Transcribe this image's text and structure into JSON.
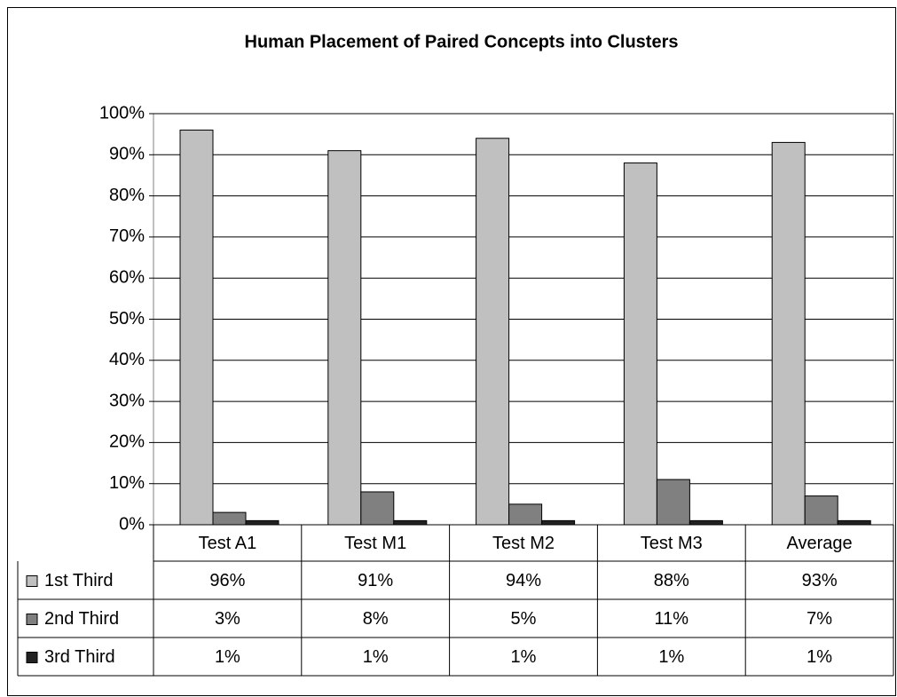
{
  "chart_data": {
    "type": "bar",
    "title": "Human Placement of Paired Concepts into Clusters",
    "categories": [
      "Test A1",
      "Test M1",
      "Test M2",
      "Test M3",
      "Average"
    ],
    "series": [
      {
        "name": "1st Third",
        "color": "#c0c0c0",
        "values": [
          96,
          91,
          94,
          88,
          93
        ],
        "value_labels": [
          "96%",
          "91%",
          "94%",
          "88%",
          "93%"
        ]
      },
      {
        "name": "2nd Third",
        "color": "#808080",
        "values": [
          3,
          8,
          5,
          11,
          7
        ],
        "value_labels": [
          "3%",
          "8%",
          "5%",
          "11%",
          "7%"
        ]
      },
      {
        "name": "3rd Third",
        "color": "#222222",
        "values": [
          1,
          1,
          1,
          1,
          1
        ],
        "value_labels": [
          "1%",
          "1%",
          "1%",
          "1%",
          "1%"
        ]
      }
    ],
    "ylim": [
      0,
      100
    ],
    "yticks": [
      {
        "value": 0,
        "label": "0%"
      },
      {
        "value": 10,
        "label": "10%"
      },
      {
        "value": 20,
        "label": "20%"
      },
      {
        "value": 30,
        "label": "30%"
      },
      {
        "value": 40,
        "label": "40%"
      },
      {
        "value": 50,
        "label": "50%"
      },
      {
        "value": 60,
        "label": "60%"
      },
      {
        "value": 70,
        "label": "70%"
      },
      {
        "value": 80,
        "label": "80%"
      },
      {
        "value": 90,
        "label": "90%"
      },
      {
        "value": 100,
        "label": "100%"
      }
    ],
    "grid": true
  }
}
